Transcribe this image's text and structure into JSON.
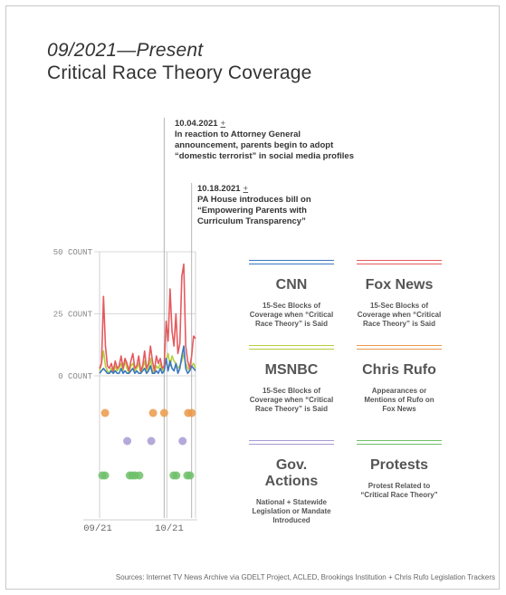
{
  "title": {
    "line1": "09/2021—Present",
    "line2": "Critical Race Theory Coverage"
  },
  "annotations": [
    {
      "date": "10.04.2021",
      "plus": "+",
      "text": [
        "In reaction to Attorney General",
        "announcement, parents begin to adopt",
        "“domestic terrorist” in social media profiles"
      ]
    },
    {
      "date": "10.18.2021",
      "plus": "+",
      "text": [
        "PA House introduces bill on",
        "“Empowering Parents with",
        "Curriculum Transparency”"
      ]
    }
  ],
  "legend": [
    {
      "name": "CNN",
      "color": "#3a78c2",
      "desc": [
        "15-Sec Blocks of",
        "Coverage when “Critical",
        "Race Theory” is Said"
      ]
    },
    {
      "name": "Fox News",
      "color": "#e55a5f",
      "desc": [
        "15-Sec Blocks of",
        "Coverage when “Critical",
        "Race Theory” is Said"
      ]
    },
    {
      "name": "MSNBC",
      "color": "#b6cf3f",
      "desc": [
        "15-Sec Blocks of",
        "Coverage when “Critical",
        "Race Theory” is Said"
      ]
    },
    {
      "name": "Chris Rufo",
      "color": "#ea9a4a",
      "desc": [
        "Appearances or",
        "Mentions of Rufo on",
        "Fox News"
      ]
    },
    {
      "name": "Gov. Actions",
      "color": "#a89ad3",
      "desc": [
        "National + Statewide",
        "Legislation or Mandate",
        "Introduced"
      ]
    },
    {
      "name": "Protests",
      "color": "#6fbf6a",
      "desc": [
        "Protest Related to",
        "“Critical Race Theory”"
      ]
    }
  ],
  "sources": "Sources: Internet TV News Archive via GDELT Project, ACLED, Brookings Institution + Chris Rufo Legislation Trackers",
  "chart_data": {
    "type": "line",
    "x_start": "2021-09-01",
    "x_ticks": [
      "09/21",
      "10/21"
    ],
    "y_ticks": [
      "0 COUNT",
      "25 COUNT",
      "50 COUNT"
    ],
    "ylim": [
      0,
      50
    ],
    "grid": true,
    "series": [
      {
        "name": "Fox News",
        "color": "#e55a5f",
        "values": [
          3,
          5,
          32,
          12,
          4,
          3,
          5,
          2,
          6,
          3,
          4,
          8,
          3,
          7,
          5,
          2,
          6,
          9,
          3,
          4,
          8,
          2,
          4,
          10,
          3,
          5,
          12,
          6,
          2,
          8,
          5,
          7,
          3,
          4,
          22,
          14,
          35,
          18,
          12,
          25,
          9,
          13,
          40,
          45,
          12,
          6,
          3,
          8,
          16,
          15
        ]
      },
      {
        "name": "CNN",
        "color": "#3a78c2",
        "values": [
          1,
          2,
          3,
          2,
          1,
          1,
          2,
          1,
          2,
          1,
          1,
          3,
          1,
          2,
          1,
          1,
          2,
          3,
          1,
          2,
          1,
          1,
          2,
          3,
          1,
          2,
          4,
          1,
          1,
          2,
          1,
          3,
          1,
          2,
          7,
          2,
          6,
          3,
          2,
          5,
          1,
          3,
          8,
          12,
          3,
          1,
          2,
          4,
          3,
          2
        ]
      },
      {
        "name": "MSNBC",
        "color": "#b6cf3f",
        "values": [
          2,
          5,
          10,
          4,
          2,
          1,
          3,
          1,
          4,
          2,
          3,
          5,
          2,
          6,
          3,
          1,
          4,
          5,
          2,
          3,
          5,
          1,
          3,
          6,
          2,
          3,
          7,
          2,
          1,
          4,
          3,
          5,
          2,
          3,
          6,
          9,
          4,
          8,
          6,
          5,
          3,
          4,
          6,
          9,
          5,
          3,
          2,
          4,
          5,
          3
        ]
      }
    ],
    "events": {
      "Chris Rufo": [
        3,
        29,
        35,
        48,
        50
      ],
      "Gov. Actions": [
        15,
        28,
        45
      ],
      "Protests": [
        2,
        4,
        22,
        24,
        26,
        29,
        54,
        56,
        64,
        66
      ]
    },
    "markers": [
      "2021-10-04",
      "2021-10-18"
    ]
  }
}
